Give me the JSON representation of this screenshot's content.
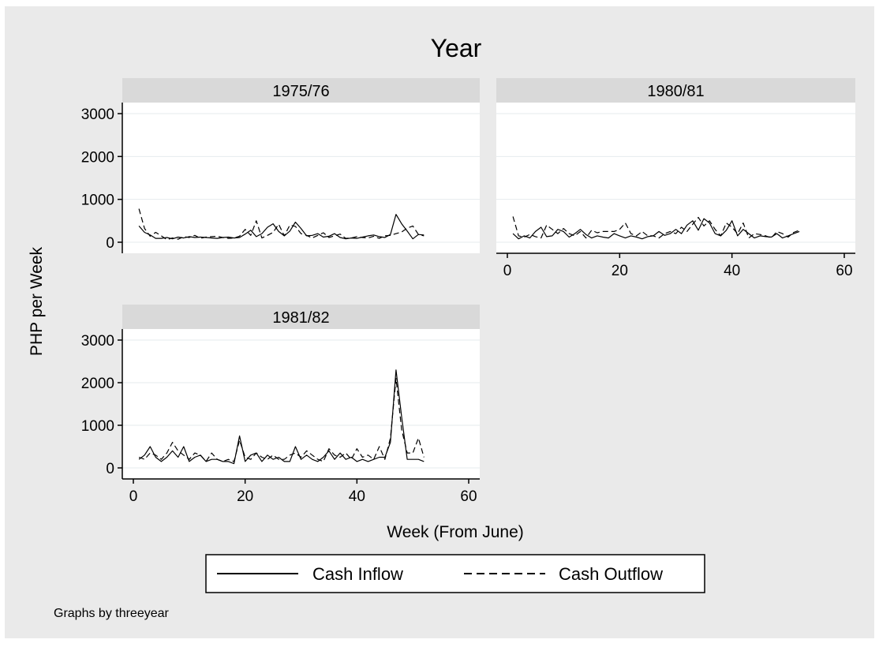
{
  "figure": {
    "title": "Year",
    "note": "Graphs by threeyear",
    "xlabel": "Week (From June)",
    "ylabel": "PHP per Week"
  },
  "legend": {
    "inflow": "Cash Inflow",
    "outflow": "Cash Outflow"
  },
  "colors": {
    "background": "#eaeaea",
    "panel": "#ffffff",
    "strip": "#d9d9d9",
    "line": "#000000"
  },
  "chart_data": [
    {
      "type": "line",
      "panel": "1975/76",
      "xlim": [
        0,
        60
      ],
      "ylim": [
        0,
        3000
      ],
      "yticks": [
        "0",
        "1000",
        "2000",
        "3000"
      ],
      "xticks": [
        "0",
        "20",
        "40",
        "60"
      ],
      "x_axis_shown": false,
      "series": [
        {
          "name": "Cash Inflow",
          "style": "solid",
          "x": [
            1,
            2,
            3,
            4,
            5,
            6,
            7,
            8,
            9,
            10,
            11,
            12,
            13,
            14,
            15,
            16,
            17,
            18,
            19,
            20,
            21,
            22,
            23,
            24,
            25,
            26,
            27,
            28,
            29,
            30,
            31,
            32,
            33,
            34,
            35,
            36,
            37,
            38,
            39,
            40,
            41,
            42,
            43,
            44,
            45,
            46,
            47,
            48,
            49,
            50,
            51,
            52
          ],
          "values": [
            380,
            230,
            170,
            90,
            90,
            110,
            80,
            120,
            100,
            130,
            110,
            120,
            110,
            100,
            90,
            110,
            120,
            100,
            110,
            190,
            280,
            130,
            200,
            350,
            430,
            250,
            150,
            260,
            470,
            320,
            150,
            160,
            200,
            120,
            140,
            200,
            110,
            80,
            100,
            90,
            120,
            150,
            170,
            130,
            110,
            180,
            650,
            430,
            260,
            80,
            180,
            170
          ]
        },
        {
          "name": "Cash Outflow",
          "style": "dashed",
          "x": [
            1,
            2,
            3,
            4,
            5,
            6,
            7,
            8,
            9,
            10,
            11,
            12,
            13,
            14,
            15,
            16,
            17,
            18,
            19,
            20,
            21,
            22,
            23,
            24,
            25,
            26,
            27,
            28,
            29,
            30,
            31,
            32,
            33,
            34,
            35,
            36,
            37,
            38,
            39,
            40,
            41,
            42,
            43,
            44,
            45,
            46,
            47,
            48,
            49,
            50,
            51,
            52
          ],
          "values": [
            780,
            320,
            140,
            230,
            150,
            60,
            100,
            70,
            130,
            110,
            160,
            90,
            120,
            130,
            140,
            110,
            90,
            100,
            140,
            300,
            160,
            500,
            100,
            160,
            230,
            420,
            150,
            400,
            370,
            200,
            160,
            100,
            160,
            220,
            110,
            150,
            190,
            90,
            100,
            130,
            110,
            100,
            140,
            90,
            150,
            160,
            200,
            240,
            330,
            380,
            180,
            150
          ]
        }
      ]
    },
    {
      "type": "line",
      "panel": "1980/81",
      "xlim": [
        0,
        60
      ],
      "ylim": [
        0,
        3000
      ],
      "yticks": [
        "0",
        "1000",
        "2000",
        "3000"
      ],
      "xticks": [
        "0",
        "20",
        "40",
        "60"
      ],
      "y_axis_shown": false,
      "series": [
        {
          "name": "Cash Inflow",
          "style": "solid",
          "x": [
            1,
            2,
            3,
            4,
            5,
            6,
            7,
            8,
            9,
            10,
            11,
            12,
            13,
            14,
            15,
            16,
            17,
            18,
            19,
            20,
            21,
            22,
            23,
            24,
            25,
            26,
            27,
            28,
            29,
            30,
            31,
            32,
            33,
            34,
            35,
            36,
            37,
            38,
            39,
            40,
            41,
            42,
            43,
            44,
            45,
            46,
            47,
            48,
            49,
            50,
            51,
            52
          ],
          "values": [
            200,
            80,
            150,
            100,
            250,
            350,
            130,
            150,
            300,
            250,
            120,
            200,
            300,
            180,
            100,
            150,
            120,
            100,
            200,
            150,
            100,
            150,
            120,
            80,
            130,
            150,
            250,
            160,
            200,
            300,
            200,
            400,
            500,
            280,
            550,
            450,
            200,
            150,
            280,
            500,
            150,
            300,
            200,
            100,
            150,
            130,
            120,
            200,
            100,
            150,
            200,
            250
          ]
        },
        {
          "name": "Cash Outflow",
          "style": "dashed",
          "x": [
            1,
            2,
            3,
            4,
            5,
            6,
            7,
            8,
            9,
            10,
            11,
            12,
            13,
            14,
            15,
            16,
            17,
            18,
            19,
            20,
            21,
            22,
            23,
            24,
            25,
            26,
            27,
            28,
            29,
            30,
            31,
            32,
            33,
            34,
            35,
            36,
            37,
            38,
            39,
            40,
            41,
            42,
            43,
            44,
            45,
            46,
            47,
            48,
            49,
            50,
            51,
            52
          ],
          "values": [
            600,
            150,
            120,
            180,
            130,
            100,
            400,
            300,
            200,
            320,
            200,
            150,
            250,
            100,
            280,
            220,
            250,
            250,
            250,
            300,
            450,
            200,
            150,
            250,
            150,
            150,
            100,
            200,
            250,
            200,
            350,
            250,
            420,
            580,
            380,
            500,
            300,
            150,
            450,
            350,
            200,
            450,
            100,
            200,
            180,
            150,
            100,
            250,
            200,
            120,
            230,
            280
          ]
        }
      ]
    },
    {
      "type": "line",
      "panel": "1981/82",
      "xlim": [
        0,
        60
      ],
      "ylim": [
        0,
        3000
      ],
      "yticks": [
        "0",
        "1000",
        "2000",
        "3000"
      ],
      "xticks": [
        "0",
        "20",
        "40",
        "60"
      ],
      "series": [
        {
          "name": "Cash Inflow",
          "style": "solid",
          "x": [
            1,
            2,
            3,
            4,
            5,
            6,
            7,
            8,
            9,
            10,
            11,
            12,
            13,
            14,
            15,
            16,
            17,
            18,
            19,
            20,
            21,
            22,
            23,
            24,
            25,
            26,
            27,
            28,
            29,
            30,
            31,
            32,
            33,
            34,
            35,
            36,
            37,
            38,
            39,
            40,
            41,
            42,
            43,
            44,
            45,
            46,
            47,
            48,
            49,
            50,
            51,
            52
          ],
          "values": [
            200,
            300,
            500,
            250,
            150,
            250,
            400,
            250,
            500,
            150,
            250,
            300,
            150,
            200,
            200,
            150,
            150,
            100,
            750,
            150,
            300,
            350,
            150,
            300,
            200,
            250,
            150,
            150,
            500,
            200,
            300,
            200,
            150,
            250,
            400,
            200,
            350,
            200,
            250,
            150,
            200,
            150,
            200,
            250,
            250,
            600,
            2300,
            1200,
            200,
            200,
            200,
            150
          ]
        },
        {
          "name": "Cash Outflow",
          "style": "dashed",
          "x": [
            1,
            2,
            3,
            4,
            5,
            6,
            7,
            8,
            9,
            10,
            11,
            12,
            13,
            14,
            15,
            16,
            17,
            18,
            19,
            20,
            21,
            22,
            23,
            24,
            25,
            26,
            27,
            28,
            29,
            30,
            31,
            32,
            33,
            34,
            35,
            36,
            37,
            38,
            39,
            40,
            41,
            42,
            43,
            44,
            45,
            46,
            47,
            48,
            49,
            50,
            51,
            52
          ],
          "values": [
            250,
            200,
            350,
            300,
            200,
            350,
            600,
            400,
            300,
            200,
            350,
            300,
            150,
            350,
            200,
            150,
            200,
            150,
            650,
            250,
            200,
            350,
            250,
            200,
            300,
            200,
            200,
            300,
            350,
            250,
            400,
            300,
            200,
            150,
            450,
            300,
            250,
            350,
            200,
            450,
            250,
            300,
            200,
            500,
            200,
            700,
            2100,
            900,
            350,
            350,
            700,
            250
          ]
        }
      ]
    }
  ]
}
